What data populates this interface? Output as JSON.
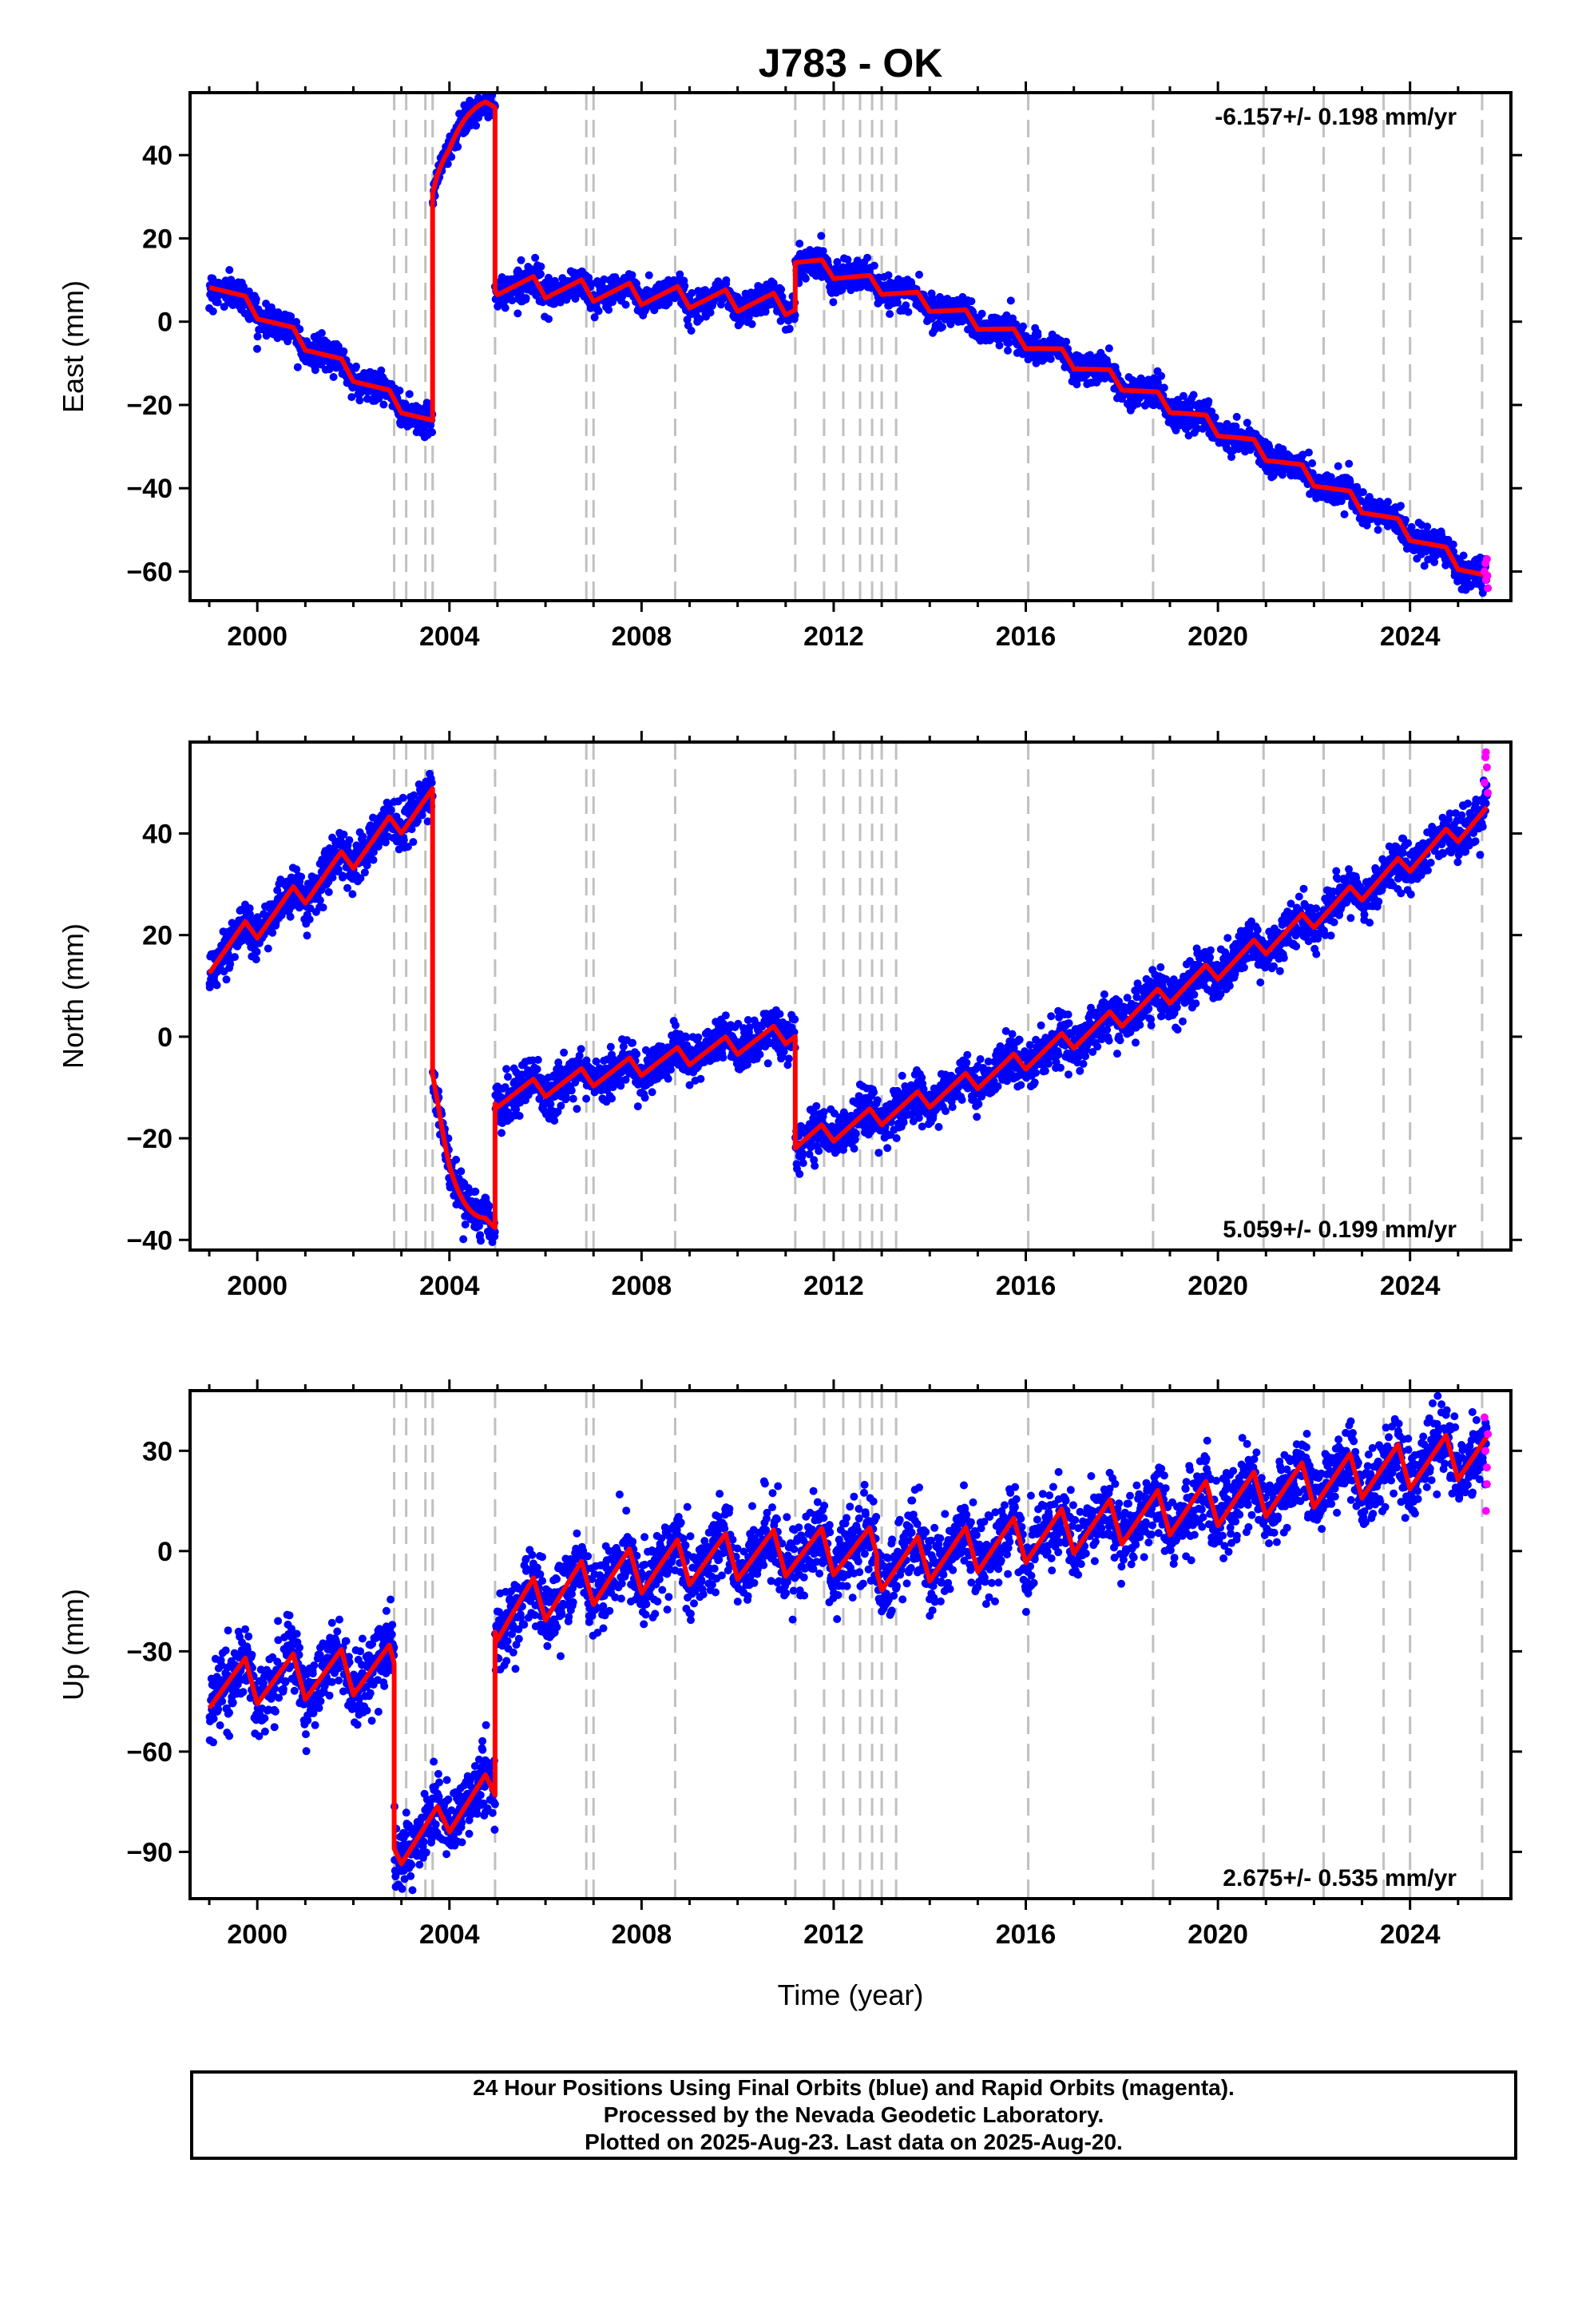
{
  "title": "J783 - OK",
  "xlabel": "Time (year)",
  "colors": {
    "final_orbits": "#0000ff",
    "rapid_orbits": "#ff00ff",
    "model": "#ff0000",
    "event_lines": "#c0c0c0"
  },
  "chart_data": [
    {
      "type": "scatter",
      "panel": "east",
      "ylabel": "East (mm)",
      "rate_text": "-6.157+/- 0.198 mm/yr",
      "xlim": [
        1998.6,
        2026.1
      ],
      "ylim": [
        -67,
        55
      ],
      "xticks": [
        2000,
        2004,
        2008,
        2012,
        2016,
        2020,
        2024
      ],
      "yticks": [
        -60,
        -40,
        -20,
        0,
        20,
        40
      ],
      "ytick_labels": [
        "−60",
        "−40",
        "−20",
        "0",
        "20",
        "40"
      ],
      "event_lines": [
        2002.85,
        2003.1,
        2003.5,
        2003.65,
        2004.95,
        2006.85,
        2007.0,
        2008.7,
        2011.2,
        2011.8,
        2012.2,
        2012.55,
        2012.8,
        2013.0,
        2013.3,
        2016.05,
        2018.65,
        2020.95,
        2022.2,
        2023.45,
        2024.0,
        2025.5
      ],
      "model_segments": [
        {
          "x": [
            1999.0,
            2003.65
          ],
          "y0": 10,
          "y1": -25,
          "amp": 1.8
        },
        {
          "x": [
            2003.65,
            2004.95
          ],
          "y0": 30,
          "y1": 52,
          "amp": 1.0,
          "shape": "log"
        },
        {
          "x": [
            2004.95,
            2011.2
          ],
          "y0": 9,
          "y1": 4,
          "amp": 2.5
        },
        {
          "x": [
            2011.2,
            2025.6
          ],
          "y0": 15,
          "y1": -62,
          "amp": 1.8,
          "shape": "accel"
        }
      ],
      "scatter_sd": 1.8,
      "rapid_points": [
        [
          2025.55,
          -60
        ],
        [
          2025.58,
          -62
        ],
        [
          2025.6,
          -57
        ],
        [
          2025.62,
          -64
        ],
        [
          2025.57,
          -58
        ],
        [
          2025.61,
          -61
        ]
      ]
    },
    {
      "type": "scatter",
      "panel": "north",
      "ylabel": "North (mm)",
      "rate_text": "5.059+/- 0.199 mm/yr",
      "xlim": [
        1998.6,
        2026.1
      ],
      "ylim": [
        -42,
        58
      ],
      "xticks": [
        2000,
        2004,
        2008,
        2012,
        2016,
        2020,
        2024
      ],
      "yticks": [
        -40,
        -20,
        0,
        20,
        40
      ],
      "ytick_labels": [
        "−40",
        "−20",
        "0",
        "20",
        "40"
      ],
      "event_lines": [
        2002.85,
        2003.1,
        2003.5,
        2003.65,
        2004.95,
        2006.85,
        2007.0,
        2008.7,
        2011.2,
        2011.8,
        2012.2,
        2012.55,
        2012.8,
        2013.0,
        2013.3,
        2016.05,
        2018.65,
        2020.95,
        2022.2,
        2023.45,
        2024.0,
        2025.5
      ],
      "model_segments": [
        {
          "x": [
            1999.0,
            2003.65
          ],
          "y0": 15,
          "y1": 47,
          "amp": 2.5
        },
        {
          "x": [
            2003.65,
            2004.95
          ],
          "y0": -8,
          "y1": -37,
          "amp": 1.0,
          "shape": "log"
        },
        {
          "x": [
            2004.95,
            2011.2
          ],
          "y0": -12,
          "y1": 1,
          "amp": 2.0
        },
        {
          "x": [
            2011.2,
            2025.6
          ],
          "y0": -21,
          "y1": 44,
          "amp": 2.0,
          "shape": "accel"
        }
      ],
      "scatter_sd": 2.2,
      "rapid_points": [
        [
          2025.55,
          50
        ],
        [
          2025.58,
          56
        ],
        [
          2025.6,
          53
        ],
        [
          2025.62,
          48
        ],
        [
          2025.57,
          55
        ]
      ]
    },
    {
      "type": "scatter",
      "panel": "up",
      "ylabel": "Up (mm)",
      "rate_text": "2.675+/- 0.535 mm/yr",
      "xlim": [
        1998.6,
        2026.1
      ],
      "ylim": [
        -104,
        48
      ],
      "xticks": [
        2000,
        2004,
        2008,
        2012,
        2016,
        2020,
        2024
      ],
      "yticks": [
        -90,
        -60,
        -30,
        0,
        30
      ],
      "ytick_labels": [
        "−90",
        "−60",
        "−30",
        "0",
        "30"
      ],
      "event_lines": [
        2002.85,
        2003.1,
        2003.5,
        2003.65,
        2004.95,
        2006.85,
        2007.0,
        2008.7,
        2011.2,
        2011.8,
        2012.2,
        2012.55,
        2012.8,
        2013.0,
        2013.3,
        2016.05,
        2018.65,
        2020.95,
        2022.2,
        2023.45,
        2024.0,
        2025.5
      ],
      "model_segments": [
        {
          "x": [
            1999.0,
            2002.85
          ],
          "y0": -40,
          "y1": -35,
          "amp": 7
        },
        {
          "x": [
            2002.85,
            2004.95
          ],
          "y0": -90,
          "y1": -70,
          "amp": 5
        },
        {
          "x": [
            2004.95,
            2012.9
          ],
          "y0": -20,
          "y1": 0,
          "amp": 7,
          "shape": "log"
        },
        {
          "x": [
            2012.9,
            2025.6
          ],
          "y0": -5,
          "y1": 30,
          "amp": 7
        }
      ],
      "scatter_sd": 5.5,
      "rapid_points": [
        [
          2025.55,
          40
        ],
        [
          2025.58,
          12
        ],
        [
          2025.6,
          25
        ],
        [
          2025.62,
          35
        ],
        [
          2025.57,
          30
        ],
        [
          2025.6,
          20
        ]
      ]
    }
  ],
  "footer": {
    "line1": "24 Hour Positions Using Final Orbits (blue) and Rapid Orbits (magenta).",
    "line2": "Processed by the Nevada Geodetic Laboratory.",
    "line3": "Plotted on 2025-Aug-23. Last data on 2025-Aug-20."
  }
}
